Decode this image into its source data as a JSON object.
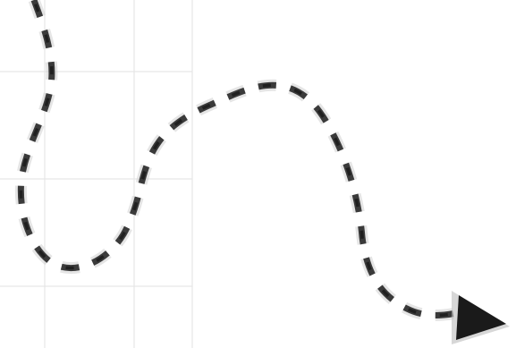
{
  "image": {
    "description_icon": "dashed-arrow-icon",
    "colors": {
      "background": "#ffffff",
      "grid": "#e6e6e6",
      "dash_dark": "#222222",
      "dash_mid": "#555555",
      "dash_light": "#9a9a9a",
      "arrowhead": "#1a1a1a"
    }
  }
}
